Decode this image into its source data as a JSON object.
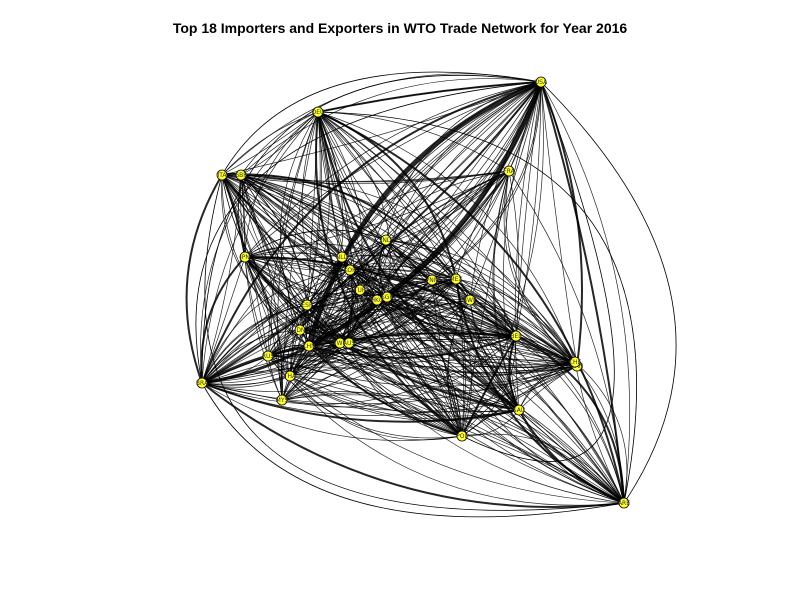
{
  "title": "Top 18 Importers and Exporters in WTO Trade Network for Year 2016",
  "colors": {
    "node_fill": "#ffff33",
    "node_stroke": "#000000",
    "edge": "#000000",
    "background": "#ffffff"
  },
  "nodes": [
    {
      "id": "USA"
    },
    {
      "id": "DEU"
    },
    {
      "id": "ITA"
    },
    {
      "id": "GBR"
    },
    {
      "id": "FRA"
    },
    {
      "id": "JPN"
    },
    {
      "id": "IND"
    },
    {
      "id": "NLD"
    },
    {
      "id": "KOR"
    },
    {
      "id": "CHN"
    },
    {
      "id": "HKG"
    },
    {
      "id": "SGP"
    },
    {
      "id": "ESP"
    },
    {
      "id": "MEX"
    },
    {
      "id": "BEL"
    },
    {
      "id": "CAN"
    },
    {
      "id": "CHE"
    },
    {
      "id": "RUS"
    },
    {
      "id": "TWN"
    },
    {
      "id": "AUS"
    },
    {
      "id": "BRA"
    },
    {
      "id": "THA"
    },
    {
      "id": "MYS"
    },
    {
      "id": "POL"
    },
    {
      "id": "SAU"
    },
    {
      "id": "ARE"
    },
    {
      "id": "VNM"
    },
    {
      "id": "IDN"
    },
    {
      "id": "TUR"
    },
    {
      "id": "SWE"
    }
  ]
}
